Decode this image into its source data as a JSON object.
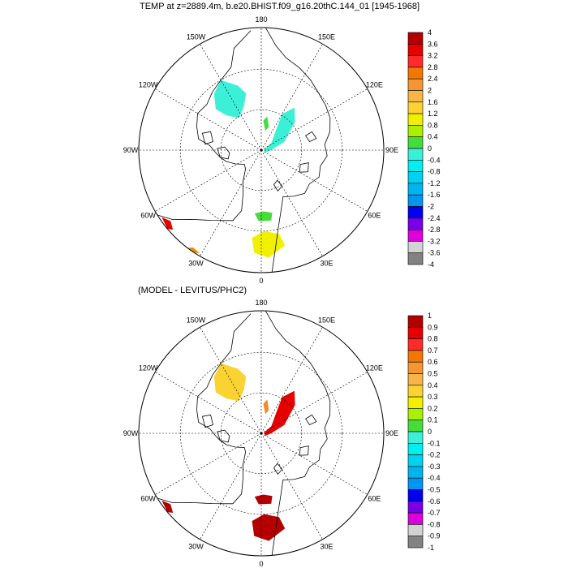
{
  "panels": [
    {
      "title": "TEMP at z=2889.4m, b.e20.BHIST.f09_g16.20thC.144_01 [1945-1968]",
      "colorbar_labels": [
        "4",
        "3.6",
        "3.2",
        "2.8",
        "2.4",
        "2",
        "1.6",
        "1.2",
        "0.8",
        "0.4",
        "0",
        "-0.4",
        "-0.8",
        "-1.2",
        "-1.6",
        "-2",
        "-2.4",
        "-2.8",
        "-3.2",
        "-3.6",
        "-4"
      ],
      "lon_labels": [
        "180",
        "150E",
        "120E",
        "90E",
        "60E",
        "30E",
        "0",
        "30W",
        "60W",
        "90W",
        "120W",
        "150W"
      ],
      "patches": [
        {
          "color": "#3cf0d8",
          "region": "canada-basin"
        },
        {
          "color": "#3cf0d8",
          "region": "eurasian-basin"
        },
        {
          "color": "#46dc3c",
          "region": "lomonosov-ridge"
        },
        {
          "color": "#46dc3c",
          "region": "fram-strait"
        },
        {
          "color": "#f0f000",
          "region": "norwegian-sea"
        },
        {
          "color": "#e60000",
          "region": "labrador-sea"
        },
        {
          "color": "#f08c00",
          "region": "north-atlantic"
        }
      ]
    },
    {
      "title": "(MODEL - LEVITUS/PHC2)",
      "colorbar_labels": [
        "1",
        "0.9",
        "0.8",
        "0.7",
        "0.6",
        "0.5",
        "0.4",
        "0.3",
        "0.2",
        "0.1",
        "0",
        "-0.1",
        "-0.2",
        "-0.3",
        "-0.4",
        "-0.5",
        "-0.6",
        "-0.7",
        "-0.8",
        "-0.9",
        "-1"
      ],
      "lon_labels": [
        "180",
        "150E",
        "120E",
        "90E",
        "60E",
        "30E",
        "0",
        "30W",
        "60W",
        "90W",
        "120W",
        "150W"
      ],
      "patches": [
        {
          "color": "#fad232",
          "region": "canada-basin"
        },
        {
          "color": "#e60000",
          "region": "eurasian-basin"
        },
        {
          "color": "#f08c28",
          "region": "lomonosov-ridge"
        },
        {
          "color": "#b40000",
          "region": "fram-strait"
        },
        {
          "color": "#b40000",
          "region": "norwegian-sea"
        },
        {
          "color": "#b40000",
          "region": "labrador-sea"
        }
      ]
    }
  ],
  "colors": {
    "colorbar": [
      "#b40000",
      "#e60000",
      "#ff2a2a",
      "#f07800",
      "#f49632",
      "#f8b446",
      "#fad232",
      "#f0f000",
      "#aaf000",
      "#46dc3c",
      "#3cf0d8",
      "#00f0f0",
      "#00d2f0",
      "#00b4f0",
      "#0096f0",
      "#0000f0",
      "#7800e6",
      "#dc00dc",
      "#d2d2d2",
      "#828282"
    ]
  }
}
